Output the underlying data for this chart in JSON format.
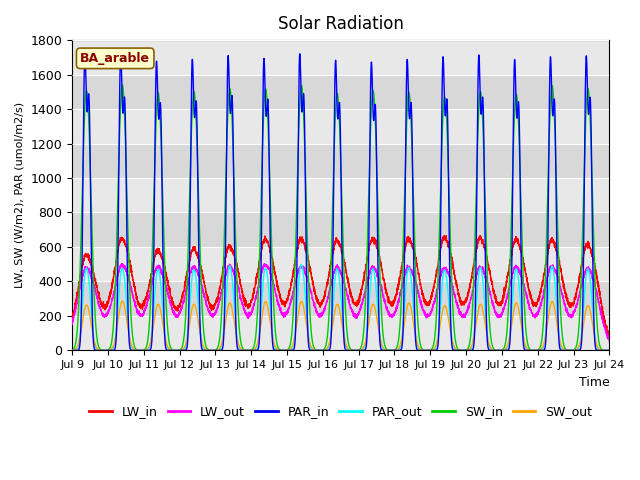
{
  "title": "Solar Radiation",
  "ylabel": "LW, SW (W/m2), PAR (umol/m2/s)",
  "xlabel": "Time",
  "annotation": "BA_arable",
  "ylim": [
    0,
    1800
  ],
  "n_days": 15,
  "start_day": 9,
  "x_tick_labels": [
    "Jul 9",
    "Jul 10",
    "Jul 11",
    "Jul 12",
    "Jul 13",
    "Jul 14",
    "Jul 15",
    "Jul 16",
    "Jul 17",
    "Jul 18",
    "Jul 19",
    "Jul 20",
    "Jul 21",
    "Jul 22",
    "Jul 23",
    "Jul 24"
  ],
  "bg_bands": [
    [
      0,
      200,
      "#e8e8e8"
    ],
    [
      200,
      400,
      "#d8d8d8"
    ],
    [
      400,
      600,
      "#e8e8e8"
    ],
    [
      600,
      800,
      "#d8d8d8"
    ],
    [
      800,
      1000,
      "#e8e8e8"
    ],
    [
      1000,
      1200,
      "#d8d8d8"
    ],
    [
      1200,
      1400,
      "#e8e8e8"
    ],
    [
      1400,
      1600,
      "#d8d8d8"
    ],
    [
      1600,
      1800,
      "#e8e8e8"
    ]
  ],
  "lines": {
    "LW_in": {
      "color": "#ff0000",
      "lw": 1.0
    },
    "LW_out": {
      "color": "#ff00ff",
      "lw": 1.0
    },
    "PAR_in": {
      "color": "#0000ff",
      "lw": 1.0
    },
    "PAR_out": {
      "color": "#00ffff",
      "lw": 1.0
    },
    "SW_in": {
      "color": "#00cc00",
      "lw": 1.0
    },
    "SW_out": {
      "color": "#ffa500",
      "lw": 1.0
    }
  }
}
